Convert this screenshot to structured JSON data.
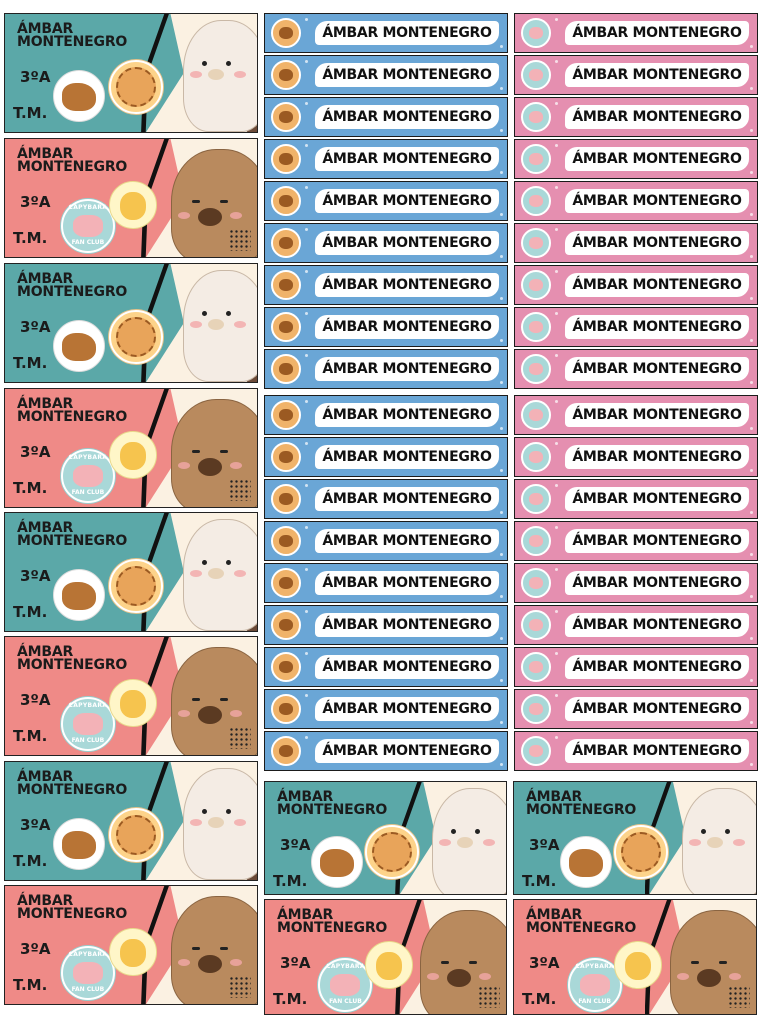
{
  "label": {
    "name": "ÁMBAR\nMONTENEGRO",
    "name_inline": "ÁMBAR MONTENEGRO",
    "grade": "3ºA",
    "initials": "T.M.",
    "fan_club_line1": "CAPYBARA",
    "fan_club_line2": "FAN CLUB"
  },
  "colors": {
    "teal": "#5ba8a8",
    "pink": "#ef8a87",
    "blue_strip": "#6aa6d6",
    "pink_strip": "#e58fb0"
  },
  "icons": [
    "capybara-icon",
    "bear-icon",
    "fan-club-badge-icon"
  ]
}
